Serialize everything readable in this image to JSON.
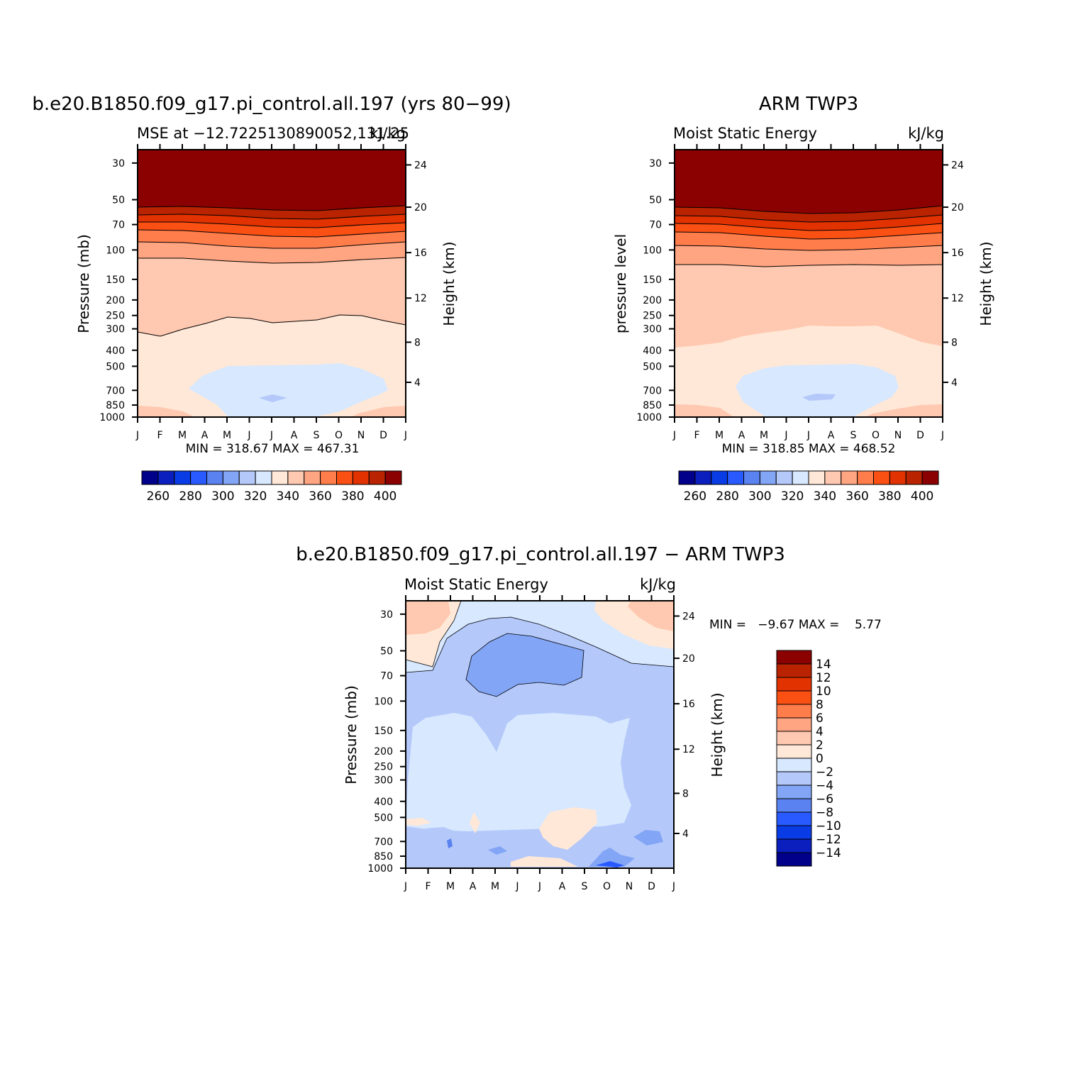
{
  "palette": {
    "bins": [
      "#00008b",
      "#0a1fbd",
      "#0a3ce6",
      "#285aff",
      "#5a82f0",
      "#82a5f5",
      "#b4c8fa",
      "#d7e8ff",
      "#ffe8d7",
      "#ffc8b0",
      "#ffa582",
      "#ff7d4b",
      "#fa5014",
      "#e13200",
      "#b92300",
      "#8b0000"
    ],
    "line_color": "#000000"
  },
  "chart_data": [
    {
      "id": "panel-model",
      "type": "heatmap",
      "title": "b.e20.B1850.f09_g17.pi_control.all.197 (yrs 80−99)",
      "left_subtitle": "MSE at −12.7225130890052,131.25",
      "right_subtitle": "kJ/kg",
      "ylabel": "Pressure (mb)",
      "y2label": "Height (km)",
      "months": [
        "J",
        "F",
        "M",
        "A",
        "M",
        "J",
        "J",
        "A",
        "S",
        "O",
        "N",
        "D",
        "J"
      ],
      "pressure_ticks": [
        "30",
        "50",
        "70",
        "100",
        "150",
        "200",
        "250",
        "300",
        "400",
        "500",
        "700",
        "850",
        "1000"
      ],
      "height_ticks": [
        "24",
        "20",
        "16",
        "12",
        "8",
        "4"
      ],
      "stats": "MIN = 318.67 MAX = 467.31",
      "colorbar": {
        "orientation": "horizontal",
        "labels": [
          "260",
          "280",
          "300",
          "320",
          "340",
          "360",
          "380",
          "400"
        ],
        "levels": [
          250,
          260,
          270,
          280,
          290,
          300,
          310,
          320,
          330,
          340,
          350,
          360,
          370,
          380,
          390,
          400,
          410
        ]
      }
    },
    {
      "id": "panel-obs",
      "type": "heatmap",
      "title": "ARM TWP3",
      "left_subtitle": "Moist Static Energy",
      "right_subtitle": "kJ/kg",
      "ylabel": "pressure level",
      "y2label": "Height (km)",
      "months": [
        "J",
        "F",
        "M",
        "A",
        "M",
        "J",
        "J",
        "A",
        "S",
        "O",
        "N",
        "D",
        "J"
      ],
      "pressure_ticks": [
        "30",
        "50",
        "70",
        "100",
        "150",
        "200",
        "250",
        "300",
        "400",
        "500",
        "700",
        "850",
        "1000"
      ],
      "height_ticks": [
        "24",
        "20",
        "16",
        "12",
        "8",
        "4"
      ],
      "stats": "MIN = 318.85 MAX = 468.52",
      "colorbar": {
        "orientation": "horizontal",
        "labels": [
          "260",
          "280",
          "300",
          "320",
          "340",
          "360",
          "380",
          "400"
        ]
      }
    },
    {
      "id": "panel-diff",
      "type": "heatmap",
      "title": "b.e20.B1850.f09_g17.pi_control.all.197 − ARM TWP3",
      "left_subtitle": "Moist Static Energy",
      "right_subtitle": "kJ/kg",
      "ylabel": "Pressure (mb)",
      "y2label": "Height (km)",
      "months": [
        "J",
        "F",
        "M",
        "A",
        "M",
        "J",
        "J",
        "A",
        "S",
        "O",
        "N",
        "D",
        "J"
      ],
      "pressure_ticks": [
        "30",
        "50",
        "70",
        "100",
        "150",
        "200",
        "250",
        "300",
        "400",
        "500",
        "700",
        "850",
        "1000"
      ],
      "height_ticks": [
        "24",
        "20",
        "16",
        "12",
        "8",
        "4"
      ],
      "stats": "MIN =   −9.67 MAX =    5.77",
      "colorbar": {
        "orientation": "vertical",
        "labels": [
          "14",
          "12",
          "10",
          "8",
          "6",
          "4",
          "2",
          "0",
          "−2",
          "−4",
          "−6",
          "−8",
          "−10",
          "−12",
          "−14"
        ],
        "levels": [
          -14,
          -12,
          -10,
          -8,
          -6,
          -4,
          -2,
          0,
          2,
          4,
          6,
          8,
          10,
          12,
          14
        ]
      }
    }
  ]
}
